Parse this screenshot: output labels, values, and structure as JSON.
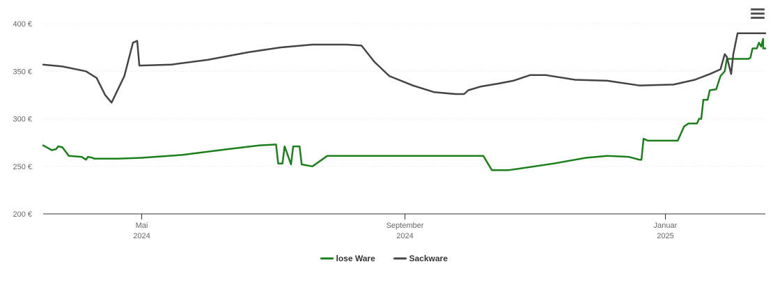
{
  "menu_icon": "hamburger-menu-icon",
  "chart_data": {
    "type": "line",
    "title": "",
    "xlabel": "",
    "ylabel": "",
    "ylim": [
      200,
      400
    ],
    "yticks": [
      {
        "value": 200,
        "label": "200 €"
      },
      {
        "value": 250,
        "label": "250 €"
      },
      {
        "value": 300,
        "label": "300 €"
      },
      {
        "value": 350,
        "label": "350 €"
      },
      {
        "value": 400,
        "label": "400 €"
      }
    ],
    "xlim": [
      "2024-03-16",
      "2025-02-17"
    ],
    "xticks": [
      {
        "date": "2024-05-01",
        "month": "Mai",
        "year": "2024"
      },
      {
        "date": "2024-09-01",
        "month": "September",
        "year": "2024"
      },
      {
        "date": "2025-01-01",
        "month": "Januar",
        "year": "2025"
      }
    ],
    "grid": true,
    "legend_position": "bottom-center",
    "series": [
      {
        "name": "lose Ware",
        "color": "#1a7f1a",
        "points": [
          [
            "2024-03-16",
            272
          ],
          [
            "2024-03-20",
            267
          ],
          [
            "2024-03-22",
            268
          ],
          [
            "2024-03-23",
            271
          ],
          [
            "2024-03-25",
            270
          ],
          [
            "2024-03-28",
            261
          ],
          [
            "2024-04-03",
            260
          ],
          [
            "2024-04-05",
            257
          ],
          [
            "2024-04-06",
            260
          ],
          [
            "2024-04-08",
            259
          ],
          [
            "2024-04-09",
            258
          ],
          [
            "2024-04-20",
            258
          ],
          [
            "2024-05-01",
            259
          ],
          [
            "2024-05-20",
            262
          ],
          [
            "2024-06-10",
            268
          ],
          [
            "2024-06-25",
            272
          ],
          [
            "2024-07-03",
            273
          ],
          [
            "2024-07-04",
            253
          ],
          [
            "2024-07-06",
            253
          ],
          [
            "2024-07-07",
            271
          ],
          [
            "2024-07-10",
            252
          ],
          [
            "2024-07-11",
            271
          ],
          [
            "2024-07-14",
            271
          ],
          [
            "2024-07-15",
            252
          ],
          [
            "2024-07-20",
            250
          ],
          [
            "2024-07-27",
            261
          ],
          [
            "2024-08-15",
            261
          ],
          [
            "2024-09-15",
            261
          ],
          [
            "2024-10-08",
            261
          ],
          [
            "2024-10-12",
            246
          ],
          [
            "2024-10-20",
            246
          ],
          [
            "2024-11-10",
            253
          ],
          [
            "2024-11-25",
            259
          ],
          [
            "2024-12-05",
            261
          ],
          [
            "2024-12-15",
            260
          ],
          [
            "2024-12-20",
            257
          ],
          [
            "2024-12-21",
            257
          ],
          [
            "2024-12-22",
            279
          ],
          [
            "2024-12-24",
            277
          ],
          [
            "2025-01-07",
            277
          ],
          [
            "2025-01-10",
            292
          ],
          [
            "2025-01-12",
            295
          ],
          [
            "2025-01-16",
            295
          ],
          [
            "2025-01-17",
            300
          ],
          [
            "2025-01-18",
            300
          ],
          [
            "2025-01-19",
            320
          ],
          [
            "2025-01-21",
            320
          ],
          [
            "2025-01-22",
            330
          ],
          [
            "2025-01-25",
            331
          ],
          [
            "2025-01-27",
            345
          ],
          [
            "2025-01-29",
            350
          ],
          [
            "2025-01-30",
            363
          ],
          [
            "2025-02-09",
            363
          ],
          [
            "2025-02-10",
            364
          ],
          [
            "2025-02-11",
            374
          ],
          [
            "2025-02-13",
            374
          ],
          [
            "2025-02-14",
            380
          ],
          [
            "2025-02-15",
            376
          ],
          [
            "2025-02-16",
            384
          ],
          [
            "2025-02-16",
            374
          ],
          [
            "2025-02-17",
            374
          ]
        ]
      },
      {
        "name": "Sackware",
        "color": "#444444",
        "points": [
          [
            "2024-03-16",
            357
          ],
          [
            "2024-03-25",
            355
          ],
          [
            "2024-04-05",
            350
          ],
          [
            "2024-04-10",
            343
          ],
          [
            "2024-04-14",
            325
          ],
          [
            "2024-04-17",
            317
          ],
          [
            "2024-04-23",
            345
          ],
          [
            "2024-04-27",
            380
          ],
          [
            "2024-04-29",
            382
          ],
          [
            "2024-04-30",
            356
          ],
          [
            "2024-05-15",
            357
          ],
          [
            "2024-06-01",
            362
          ],
          [
            "2024-06-20",
            370
          ],
          [
            "2024-07-05",
            375
          ],
          [
            "2024-07-20",
            378
          ],
          [
            "2024-08-05",
            378
          ],
          [
            "2024-08-12",
            377
          ],
          [
            "2024-08-18",
            360
          ],
          [
            "2024-08-25",
            345
          ],
          [
            "2024-09-05",
            335
          ],
          [
            "2024-09-15",
            328
          ],
          [
            "2024-09-25",
            326
          ],
          [
            "2024-09-29",
            326
          ],
          [
            "2024-10-01",
            330
          ],
          [
            "2024-10-07",
            334
          ],
          [
            "2024-10-15",
            337
          ],
          [
            "2024-10-22",
            340
          ],
          [
            "2024-10-30",
            346
          ],
          [
            "2024-11-06",
            346
          ],
          [
            "2024-11-20",
            341
          ],
          [
            "2024-12-05",
            340
          ],
          [
            "2024-12-20",
            335
          ],
          [
            "2025-01-05",
            336
          ],
          [
            "2025-01-15",
            341
          ],
          [
            "2025-01-22",
            347
          ],
          [
            "2025-01-27",
            352
          ],
          [
            "2025-01-29",
            368
          ],
          [
            "2025-01-30",
            365
          ],
          [
            "2025-02-01",
            347
          ],
          [
            "2025-02-02",
            368
          ],
          [
            "2025-02-04",
            390
          ],
          [
            "2025-02-17",
            390
          ]
        ]
      }
    ]
  }
}
